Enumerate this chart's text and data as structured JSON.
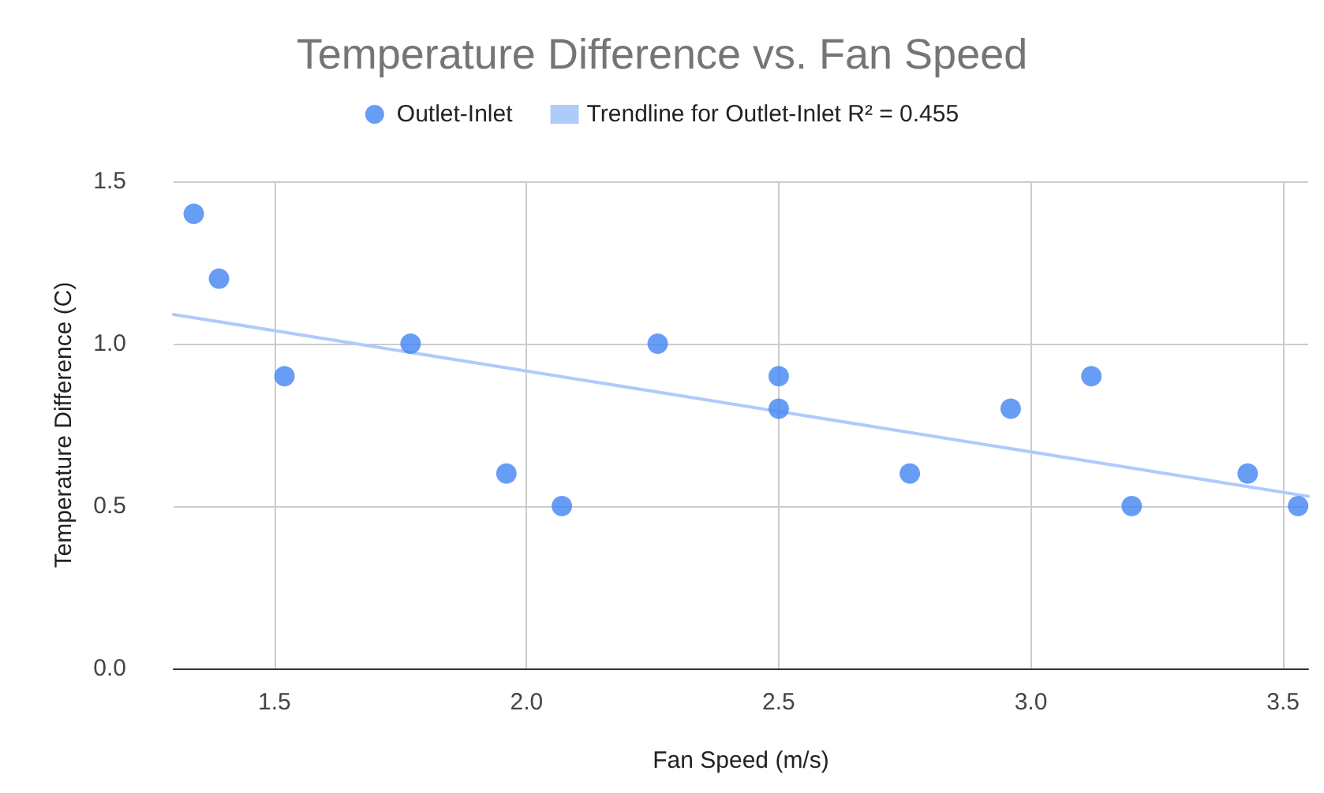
{
  "chart_data": {
    "type": "scatter",
    "title": "Temperature Difference vs. Fan Speed",
    "xlabel": "Fan Speed (m/s)",
    "ylabel": "Temperature Difference (C)",
    "series": [
      {
        "name": "Outlet-Inlet",
        "color": "#4285f4",
        "marker": "circle",
        "x": [
          1.34,
          1.39,
          1.52,
          1.77,
          1.96,
          2.07,
          2.26,
          2.5,
          2.5,
          2.76,
          2.96,
          3.12,
          3.2,
          3.43,
          3.53
        ],
        "values": [
          1.4,
          1.2,
          0.9,
          1.0,
          0.6,
          0.5,
          1.0,
          0.9,
          0.8,
          0.6,
          0.8,
          0.9,
          0.5,
          0.6,
          0.5
        ]
      },
      {
        "name": "Trendline for Outlet-Inlet R² = 0.455",
        "type": "line",
        "marker": "none",
        "color": "#aecbfa",
        "x": [
          1.3,
          3.55
        ],
        "values": [
          1.09,
          0.53
        ]
      }
    ],
    "xlim": [
      1.3,
      3.55
    ],
    "xticks": [
      1.5,
      {
        "value": 2,
        "label": "2.0"
      },
      2.5,
      {
        "value": 3,
        "label": "3.0"
      },
      3.5
    ],
    "ylim": [
      0,
      1.5
    ],
    "yticks": [
      {
        "value": 0,
        "label": "0.0"
      },
      0.5,
      {
        "value": 1,
        "label": "1.0"
      },
      1.5
    ],
    "grid": true,
    "legend": "top"
  }
}
